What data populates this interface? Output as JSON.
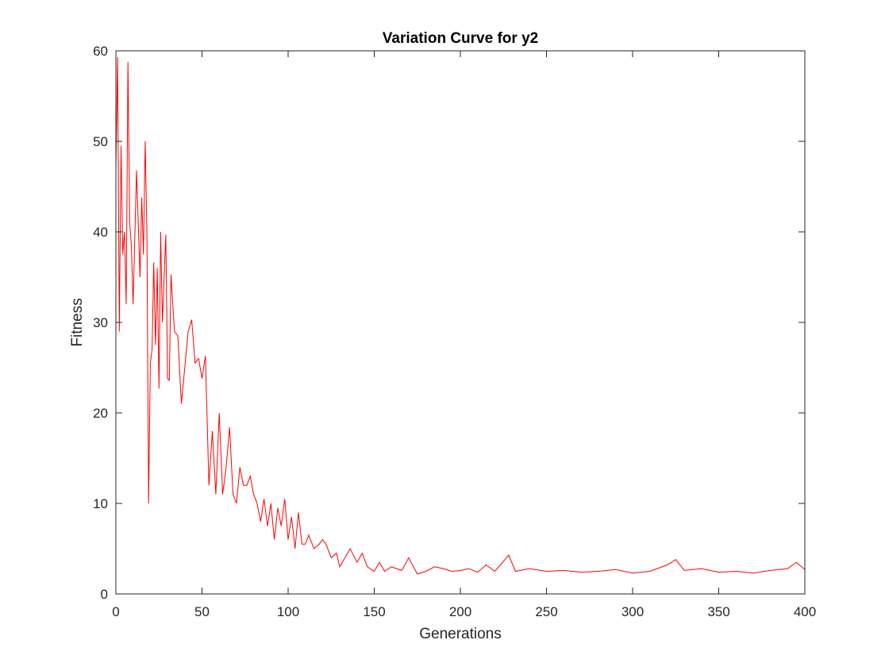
{
  "chart_data": {
    "type": "line",
    "title": "Variation Curve for y2",
    "xlabel": "Generations",
    "ylabel": "Fitness",
    "xlim": [
      0,
      400
    ],
    "ylim": [
      0,
      60
    ],
    "xticks": [
      "0",
      "50",
      "100",
      "150",
      "200",
      "250",
      "300",
      "350",
      "400"
    ],
    "yticks": [
      "0",
      "10",
      "20",
      "30",
      "40",
      "50",
      "60"
    ],
    "grid": false,
    "line_color": "#ff0000",
    "series": [
      {
        "x": [
          0,
          1,
          2,
          3,
          4,
          5,
          6,
          7,
          8,
          9,
          10,
          12,
          14,
          15,
          16,
          17,
          18,
          19,
          20,
          21,
          22,
          23,
          24,
          25,
          26,
          27,
          28,
          29,
          30,
          31,
          32,
          34,
          36,
          38,
          40,
          42,
          44,
          46,
          48,
          50,
          52,
          54,
          56,
          58,
          60,
          62,
          64,
          66,
          68,
          70,
          72,
          74,
          76,
          78,
          80,
          82,
          84,
          86,
          88,
          90,
          92,
          94,
          96,
          98,
          100,
          102,
          104,
          106,
          108,
          110,
          112,
          115,
          118,
          120,
          122,
          125,
          128,
          130,
          133,
          136,
          140,
          143,
          146,
          150,
          153,
          156,
          160,
          163,
          166,
          170,
          175,
          180,
          185,
          190,
          195,
          200,
          205,
          210,
          215,
          220,
          225,
          228,
          232,
          240,
          250,
          260,
          270,
          280,
          290,
          300,
          310,
          320,
          325,
          330,
          340,
          350,
          360,
          370,
          380,
          390,
          395,
          400
        ],
        "y": [
          47,
          59.3,
          29,
          49.5,
          37.5,
          40,
          32,
          58.8,
          41,
          38.5,
          32,
          46.8,
          35,
          43.8,
          37.5,
          50,
          40,
          10,
          25.5,
          27,
          36.6,
          27.5,
          36,
          22.7,
          40,
          30,
          35,
          39.7,
          23.8,
          23.6,
          35.3,
          29,
          28.5,
          21,
          25,
          29,
          30.3,
          25.5,
          26,
          23.8,
          26.3,
          12,
          18,
          11,
          20,
          11,
          14,
          18.4,
          11,
          10,
          14,
          12,
          12,
          13,
          11,
          10,
          8,
          10.5,
          7.5,
          10,
          6,
          9.5,
          7.5,
          10.5,
          6,
          8.5,
          5,
          9,
          5.5,
          5.5,
          6.5,
          5,
          5.5,
          6,
          5.5,
          4,
          4.5,
          3,
          4,
          5,
          3.5,
          4.5,
          3,
          2.5,
          3.5,
          2.5,
          3,
          2.8,
          2.6,
          4,
          2.2,
          2.5,
          3,
          2.8,
          2.5,
          2.6,
          2.8,
          2.4,
          3.2,
          2.5,
          3.6,
          4.3,
          2.5,
          2.8,
          2.5,
          2.6,
          2.4,
          2.5,
          2.7,
          2.3,
          2.5,
          3.2,
          3.8,
          2.6,
          2.8,
          2.4,
          2.5,
          2.3,
          2.6,
          2.8,
          3.5,
          2.7
        ]
      }
    ]
  }
}
